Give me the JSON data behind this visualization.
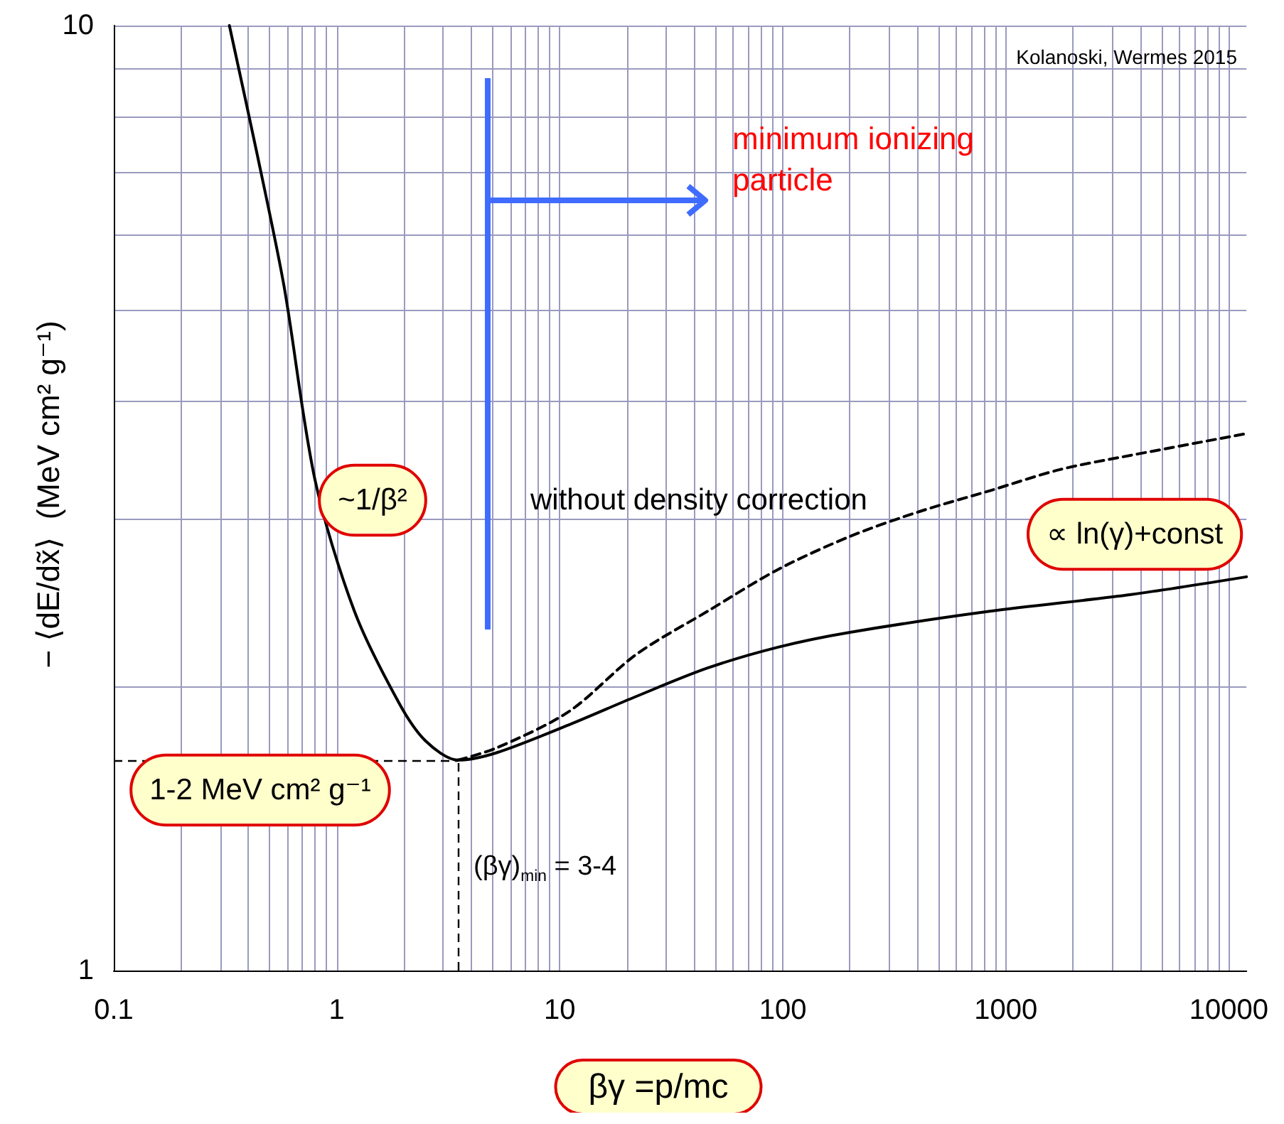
{
  "chart_data": {
    "type": "line",
    "xlabel": "βγ =p/mc",
    "ylabel": "− ⟨dE/dx̃⟩  (MeV cm² g⁻¹)",
    "log": "xy",
    "grid": true,
    "xlim": [
      0.1,
      12000
    ],
    "ylim": [
      1,
      10
    ],
    "xticks": [
      0.1,
      {
        "value": 0.2,
        "label": null
      },
      {
        "value": 0.3,
        "label": null
      },
      {
        "value": 0.4,
        "label": null
      },
      {
        "value": 0.5,
        "label": null
      },
      {
        "value": 0.6,
        "label": null
      },
      {
        "value": 0.7,
        "label": null
      },
      {
        "value": 0.8,
        "label": null
      },
      {
        "value": 0.9,
        "label": null
      },
      1,
      {
        "value": 2,
        "label": null
      },
      {
        "value": 3,
        "label": null
      },
      {
        "value": 4,
        "label": null
      },
      {
        "value": 5,
        "label": null
      },
      {
        "value": 6,
        "label": null
      },
      {
        "value": 7,
        "label": null
      },
      {
        "value": 8,
        "label": null
      },
      {
        "value": 9,
        "label": null
      },
      10,
      {
        "value": 20,
        "label": null
      },
      {
        "value": 30,
        "label": null
      },
      {
        "value": 40,
        "label": null
      },
      {
        "value": 50,
        "label": null
      },
      {
        "value": 60,
        "label": null
      },
      {
        "value": 70,
        "label": null
      },
      {
        "value": 80,
        "label": null
      },
      {
        "value": 90,
        "label": null
      },
      100,
      {
        "value": 200,
        "label": null
      },
      {
        "value": 300,
        "label": null
      },
      {
        "value": 400,
        "label": null
      },
      {
        "value": 500,
        "label": null
      },
      {
        "value": 600,
        "label": null
      },
      {
        "value": 700,
        "label": null
      },
      {
        "value": 800,
        "label": null
      },
      {
        "value": 900,
        "label": null
      },
      1000,
      {
        "value": 2000,
        "label": null
      },
      {
        "value": 3000,
        "label": null
      },
      {
        "value": 4000,
        "label": null
      },
      {
        "value": 5000,
        "label": null
      },
      {
        "value": 6000,
        "label": null
      },
      {
        "value": 7000,
        "label": null
      },
      {
        "value": 8000,
        "label": null
      },
      {
        "value": 9000,
        "label": null
      },
      10000
    ],
    "yticks": [
      1,
      {
        "value": 2,
        "label": null
      },
      {
        "value": 3,
        "label": null
      },
      {
        "value": 4,
        "label": null
      },
      {
        "value": 5,
        "label": null
      },
      {
        "value": 6,
        "label": null
      },
      {
        "value": 7,
        "label": null
      },
      {
        "value": 8,
        "label": null
      },
      {
        "value": 9,
        "label": null
      },
      10
    ],
    "marker": "none",
    "series": [
      {
        "color": "#000000",
        "line_style": "solid",
        "x": [
          0.33,
          0.44,
          0.58,
          0.8,
          1.2,
          1.9,
          2.5,
          3.5,
          5.2,
          11,
          22,
          46,
          96,
          200,
          850,
          3650,
          12000
        ],
        "values": [
          10,
          7.3,
          5.3,
          3.3,
          2.4,
          1.92,
          1.75,
          1.67,
          1.7,
          1.82,
          1.95,
          2.09,
          2.2,
          2.28,
          2.4,
          2.5,
          2.61
        ]
      },
      {
        "color": "#000000",
        "line_style": "dashed",
        "x": [
          3.5,
          5.2,
          11,
          22,
          46,
          96,
          200,
          410,
          850,
          1750,
          3650,
          12000
        ],
        "values": [
          1.67,
          1.72,
          1.88,
          2.16,
          2.4,
          2.66,
          2.88,
          3.06,
          3.22,
          3.39,
          3.51,
          3.7
        ]
      }
    ],
    "ref_lines": [
      {
        "axis": "y",
        "value": 1.67,
        "color": "#000000",
        "line_style": "dashed"
      },
      {
        "axis": "x",
        "value": 3.5,
        "color": "#000000",
        "line_style": "dashed"
      }
    ],
    "annotations": [
      "Kolanoski, Wermes 2015",
      "minimum ionizing particle",
      "without density correction",
      "∝ ln(γ)+const",
      "~1/β²",
      "1-2 MeV cm² g⁻¹",
      "(βγ)$_{min}$ = 3-4"
    ]
  }
}
